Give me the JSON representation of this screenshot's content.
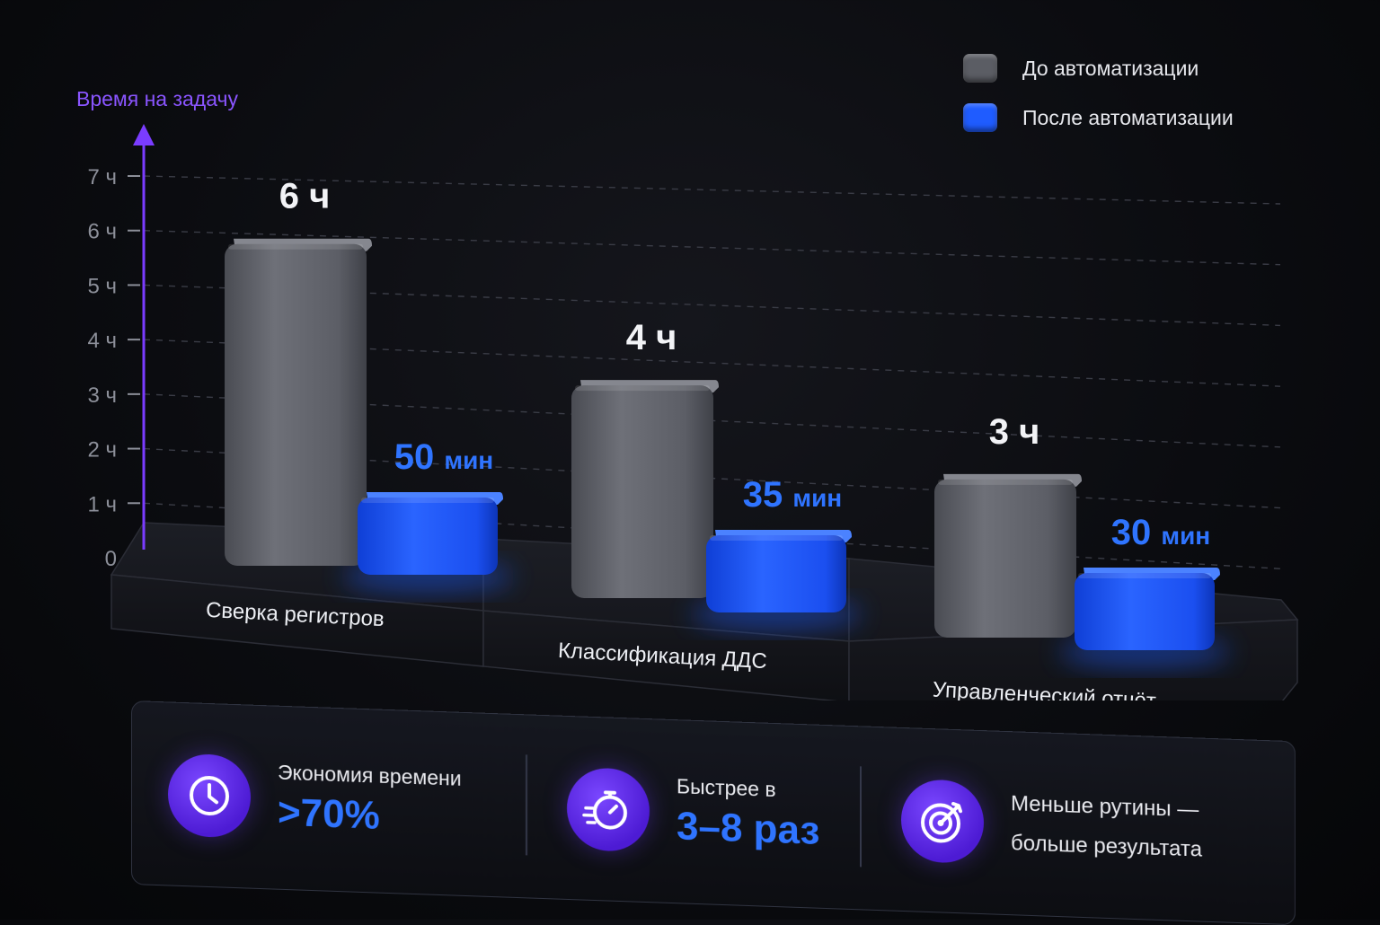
{
  "chart_data": {
    "type": "bar",
    "ylabel": "Время на задачу",
    "yticks": [
      "0",
      "1 ч",
      "2 ч",
      "3 ч",
      "4 ч",
      "5 ч",
      "6 ч",
      "7 ч"
    ],
    "ylim": [
      0,
      7
    ],
    "unit": "hours",
    "grid": true,
    "legend_position": "top-right",
    "categories": [
      "Сверка регистров",
      "Классификация ДДС",
      "Управленческий отчёт"
    ],
    "series": [
      {
        "name": "До автоматизации",
        "color": "#5b5d64",
        "values": [
          6,
          4,
          3
        ],
        "labels": [
          "6 ч",
          "4 ч",
          "3 ч"
        ]
      },
      {
        "name": "После автоматизации",
        "color": "#1f5cff",
        "values": [
          0.8333,
          0.5833,
          0.5
        ],
        "labels": [
          {
            "num": "50",
            "unit": "мин"
          },
          {
            "num": "35",
            "unit": "мин"
          },
          {
            "num": "30",
            "unit": "мин"
          }
        ]
      }
    ]
  },
  "stats": [
    {
      "icon": "clock-icon",
      "label": "Экономия времени",
      "value": ">70%"
    },
    {
      "icon": "stopwatch-icon",
      "label": "Быстрее в",
      "value": "3–8 раз"
    },
    {
      "icon": "target-icon",
      "line1": "Меньше рутины —",
      "line2": "больше результата"
    }
  ],
  "colors": {
    "accent": "#2f74ff",
    "axis": "#7a3cff",
    "icon_bg": "#5a25e6"
  }
}
